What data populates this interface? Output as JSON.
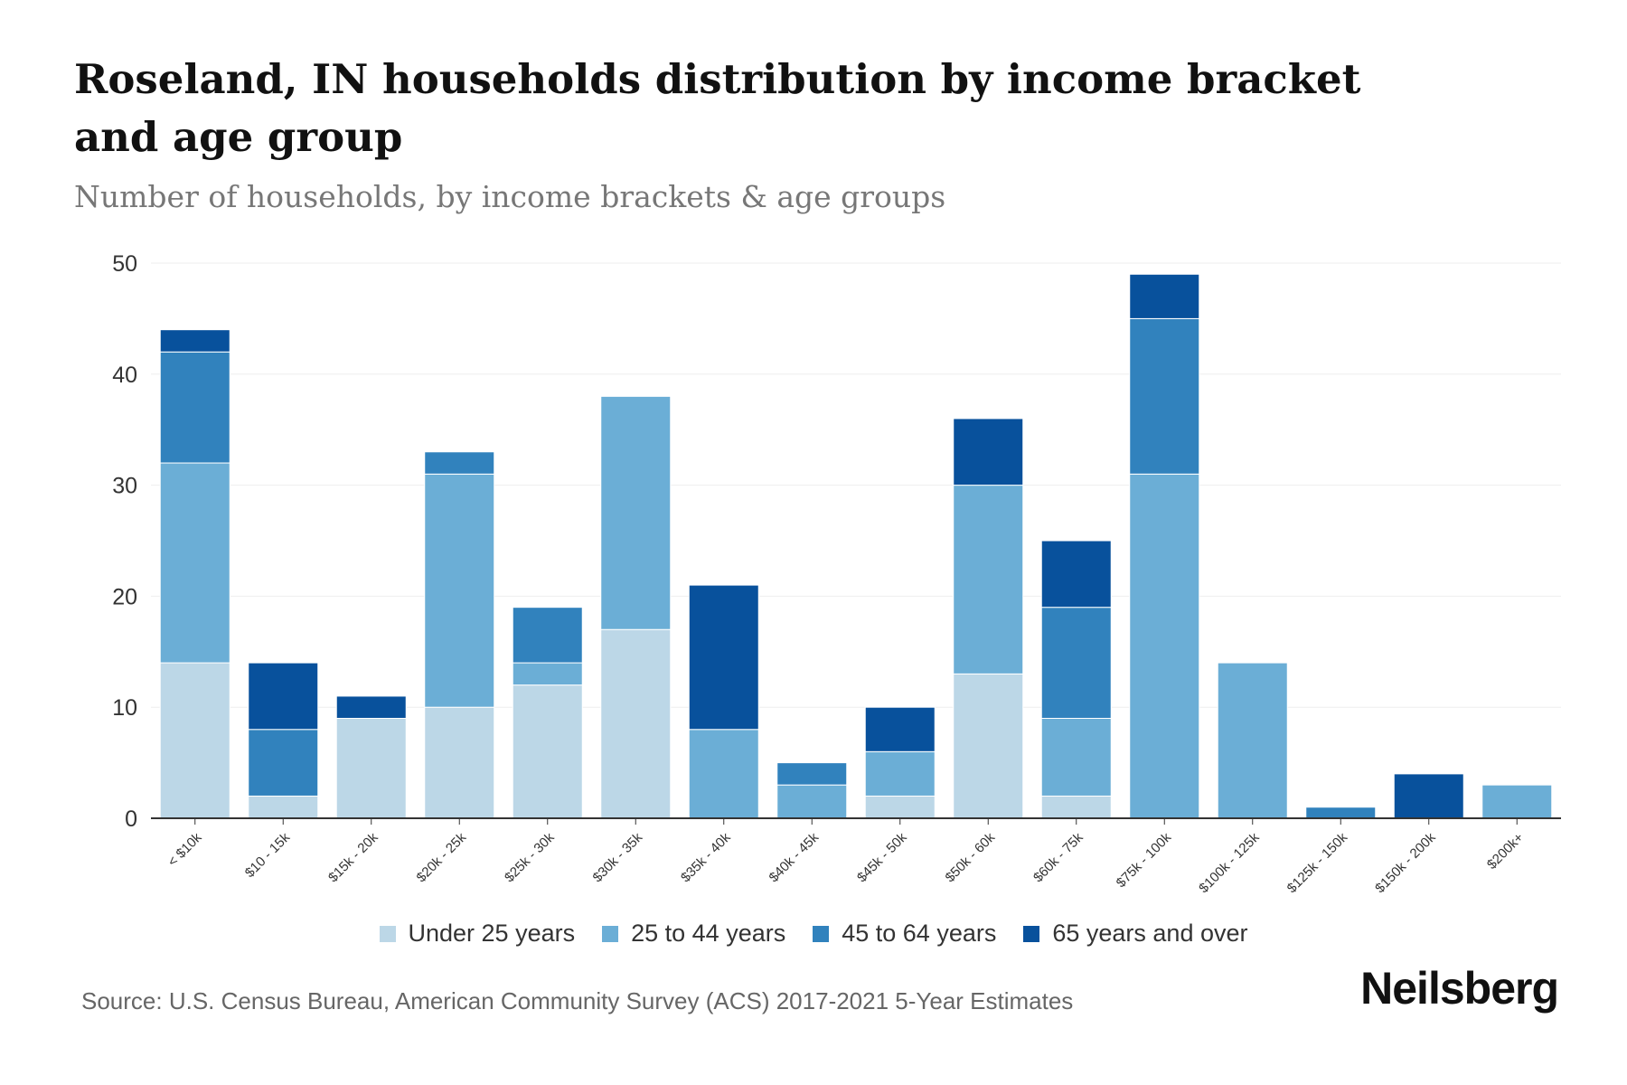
{
  "chart_data": {
    "type": "bar",
    "stacked": true,
    "title": "Roseland, IN households distribution by income bracket and age group",
    "subtitle": "Number of households, by income brackets & age groups",
    "xlabel": "",
    "ylabel": "",
    "ylim": [
      0,
      50
    ],
    "yticks": [
      0,
      10,
      20,
      30,
      40,
      50
    ],
    "grid": true,
    "legend_position": "bottom",
    "categories": [
      "< $10k",
      "$10 - 15k",
      "$15k - 20k",
      "$20k - 25k",
      "$25k - 30k",
      "$30k - 35k",
      "$35k - 40k",
      "$40k - 45k",
      "$45k - 50k",
      "$50k - 60k",
      "$60k - 75k",
      "$75k - 100k",
      "$100k - 125k",
      "$125k - 150k",
      "$150k - 200k",
      "$200k+"
    ],
    "series": [
      {
        "name": "Under 25 years",
        "color": "#bcd7e7",
        "values": [
          14,
          2,
          9,
          10,
          12,
          17,
          0,
          0,
          2,
          13,
          2,
          0,
          0,
          0,
          0,
          0
        ]
      },
      {
        "name": "25 to 44 years",
        "color": "#6baed6",
        "values": [
          18,
          0,
          0,
          21,
          2,
          21,
          8,
          3,
          4,
          17,
          7,
          31,
          14,
          0,
          0,
          3
        ]
      },
      {
        "name": "45 to 64 years",
        "color": "#3182bd",
        "values": [
          10,
          6,
          0,
          2,
          5,
          0,
          0,
          2,
          0,
          0,
          10,
          14,
          0,
          1,
          0,
          0
        ]
      },
      {
        "name": "65 years and over",
        "color": "#08519c",
        "values": [
          2,
          6,
          2,
          0,
          0,
          0,
          13,
          0,
          4,
          6,
          6,
          4,
          0,
          0,
          4,
          0
        ]
      }
    ]
  },
  "footer": {
    "source": "Source: U.S. Census Bureau, American Community Survey (ACS) 2017-2021 5-Year Estimates",
    "brand": "Neilsberg"
  }
}
